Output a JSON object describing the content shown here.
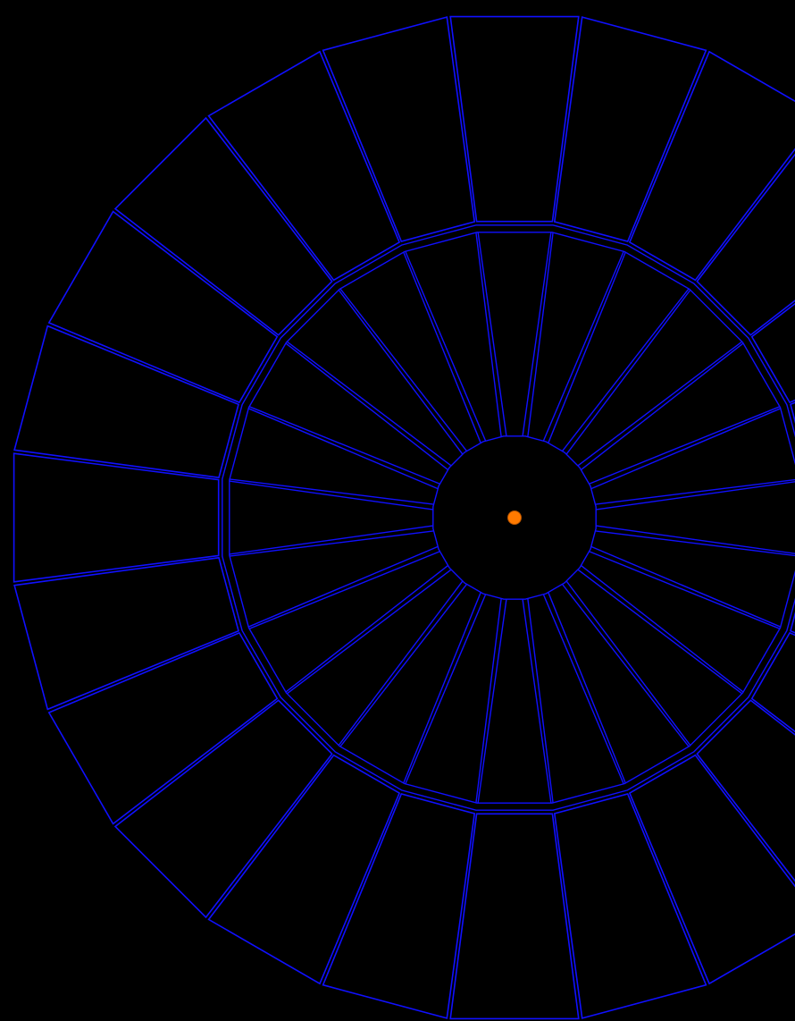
{
  "diagram": {
    "type": "radial-wireframe",
    "background_color": "#000000",
    "line_color": "#1010ff",
    "center_marker_color": "#ff7a00",
    "spoke_count": 24,
    "outer_blocks": 24
  }
}
